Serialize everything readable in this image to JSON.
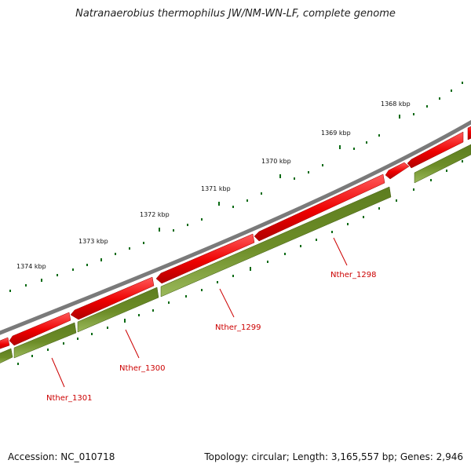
{
  "title": "Natranaerobius thermophilus JW/NM-WN-LF, complete genome",
  "accession": "Accession: NC_010718",
  "summary": "Topology: circular; Length: 3,165,557 bp; Genes: 2,946",
  "colors": {
    "backbone": "#7a7a7a",
    "forward_gene": "#e00000",
    "reverse_gene": "#5b7f1a",
    "tick": "#0a6a14",
    "gene_label": "#cc0000"
  },
  "scale_labels": [
    "1368 kbp",
    "1369 kbp",
    "1370 kbp",
    "1371 kbp",
    "1372 kbp",
    "1373 kbp",
    "1374 kbp"
  ],
  "gene_labels": [
    "Nther_1298",
    "Nther_1299",
    "Nther_1300",
    "Nther_1301"
  ]
}
